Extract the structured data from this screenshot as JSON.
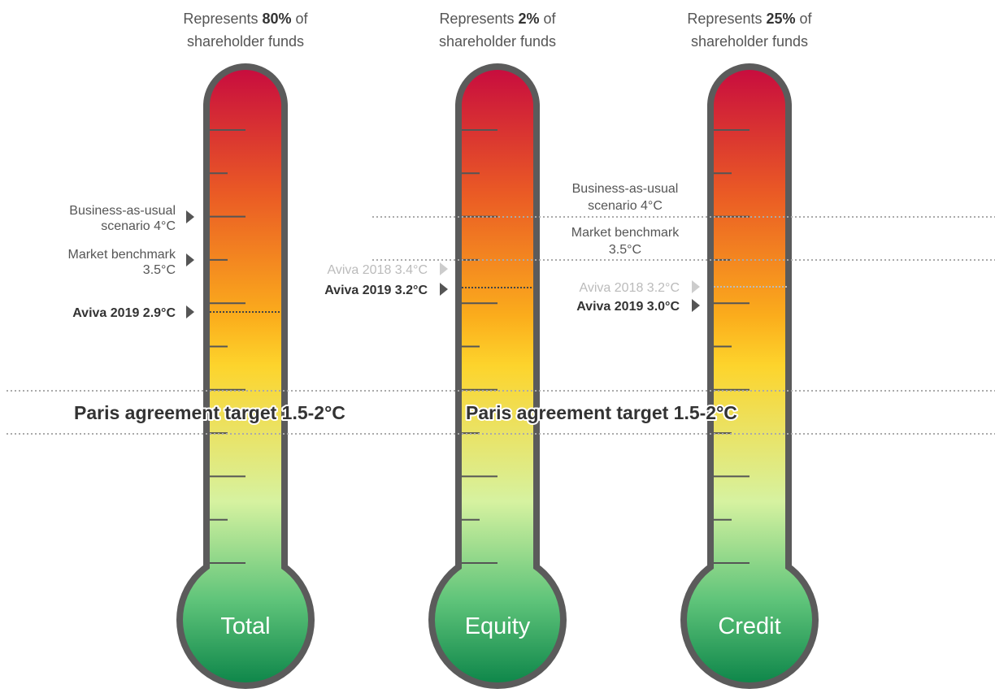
{
  "columns": [
    {
      "header": {
        "prefix": "Represents",
        "share": "80%",
        "suffix": "of",
        "line2": "shareholder funds"
      },
      "label": "Total",
      "markers": {
        "bau": [
          "Business-as-usual",
          "scenario 4°C"
        ],
        "benchmark": [
          "Market benchmark",
          "3.5°C"
        ],
        "aviva2019": "Aviva 2019 2.9°C"
      }
    },
    {
      "header": {
        "prefix": "Represents",
        "share": "2%",
        "suffix": "of",
        "line2": "shareholder funds"
      },
      "label": "Equity",
      "markers": {
        "aviva2018": "Aviva 2018 3.4°C",
        "aviva2019": "Aviva 2019 3.2°C"
      }
    },
    {
      "header": {
        "prefix": "Represents",
        "share": "25%",
        "suffix": "of",
        "line2": "shareholder funds"
      },
      "label": "Credit",
      "markers": {
        "aviva2018": "Aviva 2018 3.2°C",
        "aviva2019": "Aviva 2019 3.0°C"
      }
    }
  ],
  "shared_markers": {
    "bau": [
      "Business-as-usual",
      "scenario 4°C"
    ],
    "benchmark": [
      "Market benchmark",
      "3.5°C"
    ]
  },
  "paris": "Paris agreement target 1.5-2°C"
}
